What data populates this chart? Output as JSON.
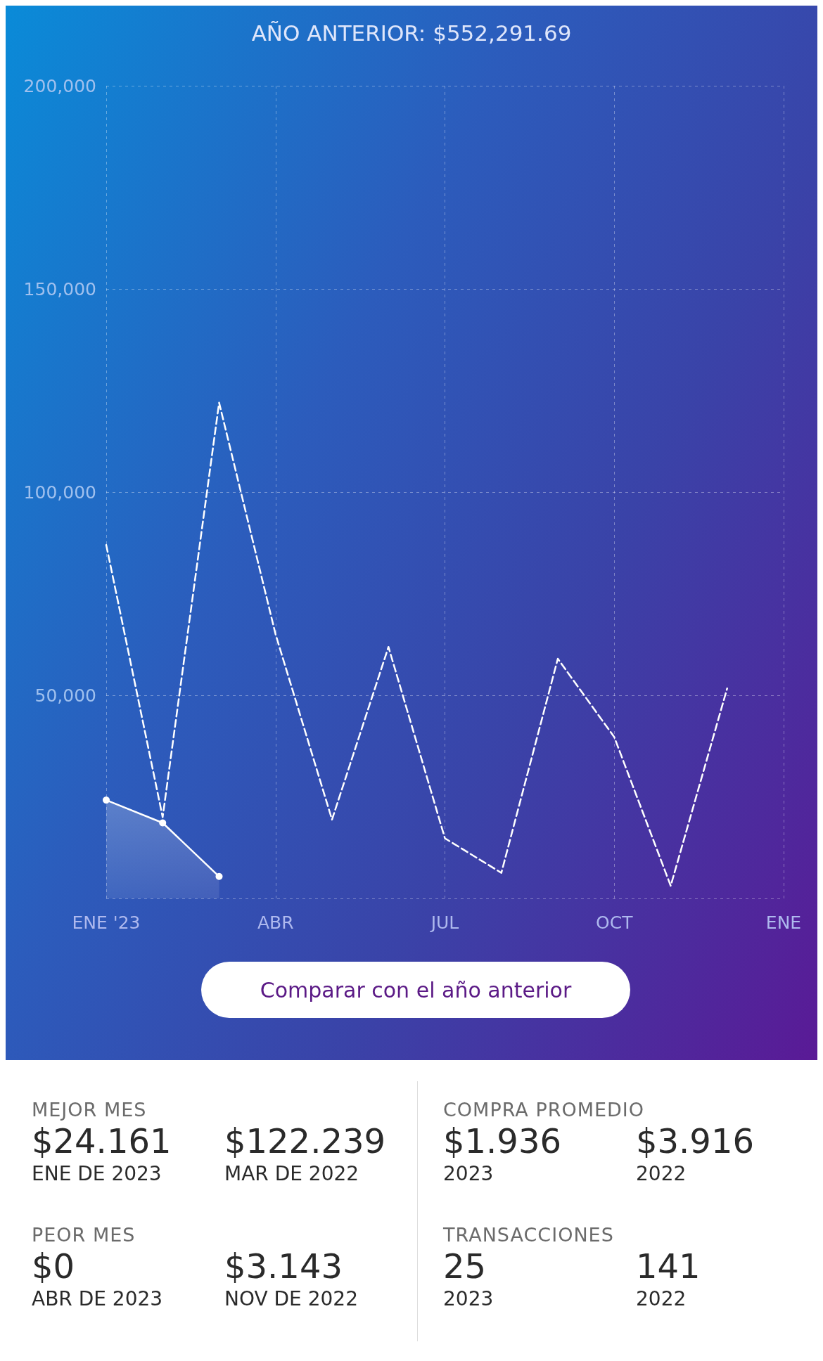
{
  "chart_data": [
    {
      "type": "line",
      "title": "AÑO ANTERIOR: $552,291.69",
      "categories": [
        "ENE '23",
        null,
        null,
        "ABR",
        null,
        null,
        "JUL",
        null,
        null,
        "OCT",
        null,
        null,
        "ENE"
      ],
      "series": [
        {
          "type": "line",
          "color": "#ffffff",
          "line_style": "dashed",
          "marker": "none",
          "values": [
            87000,
            20000,
            122000,
            65000,
            19400,
            61900,
            14800,
            6300,
            59000,
            39700,
            3100,
            51700,
            null
          ]
        },
        {
          "type": "area",
          "color": "#ffffff",
          "line_style": "solid",
          "marker": "circle",
          "values": [
            24200,
            18600,
            5400,
            null,
            null,
            null,
            null,
            null,
            null,
            null,
            null,
            null,
            null
          ]
        }
      ],
      "ylim": [
        0,
        200000
      ],
      "yticks": [
        {
          "value": 0,
          "label": null
        },
        {
          "value": 50000,
          "label": "50,000"
        },
        {
          "value": 100000,
          "label": "100,000"
        },
        {
          "value": 150000,
          "label": "150,000"
        },
        {
          "value": 200000,
          "label": "200,000"
        }
      ],
      "grid": true,
      "annotations": [
        "Comparar con el año anterior"
      ]
    },
    {
      "type": "other",
      "annotations": [
        "MEJOR MES",
        "$24.161",
        "ENE DE 2023",
        "$122.239",
        "MAR DE 2022",
        "COMPRA PROMEDIO",
        "$1.936",
        "2023",
        "$3.916",
        "2022",
        "PEOR MES",
        "$0",
        "ABR DE 2023",
        "$3.143",
        "NOV DE 2022",
        "TRANSACCIONES",
        "25",
        "2023",
        "141",
        "2022"
      ]
    }
  ]
}
